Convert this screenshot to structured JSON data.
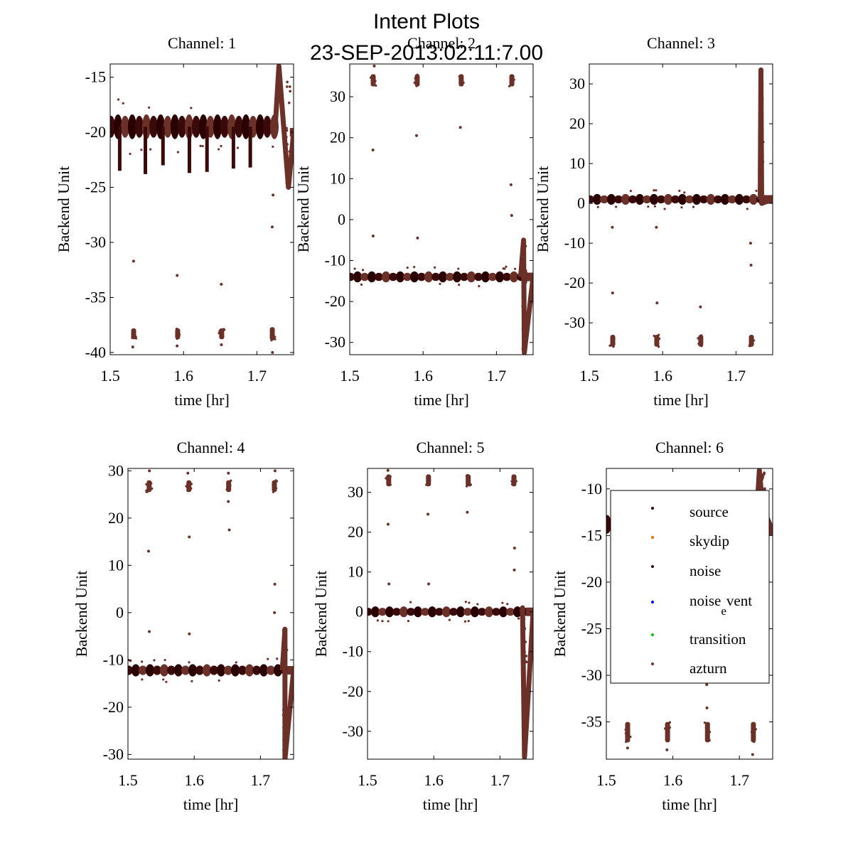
{
  "figure": {
    "title_line1": "Intent Plots",
    "title_line2": "23-SEP-2013:02:11:7.00"
  },
  "colors": {
    "source": "#2a0000",
    "skydip": "#e07000",
    "noise": "#3a0a0a",
    "noise_event": "#0000ff",
    "transition": "#00c000",
    "azturn": "#6b3028",
    "axis": "#000000"
  },
  "legend": {
    "entries": [
      {
        "label": "source",
        "color_key": "source"
      },
      {
        "label": "skydip",
        "color_key": "skydip"
      },
      {
        "label": "noise",
        "color_key": "noise"
      },
      {
        "label": "noise",
        "sub": "e",
        "rest": "vent",
        "color_key": "noise_event"
      },
      {
        "label": "transition",
        "color_key": "transition"
      },
      {
        "label": "azturn",
        "color_key": "azturn"
      }
    ]
  },
  "chart_data": [
    {
      "type": "scatter",
      "title": "Channel: 1",
      "xlabel": "time [hr]",
      "ylabel": "Backend Unit",
      "xlim": [
        1.5,
        1.75
      ],
      "ylim": [
        -40.2,
        -13.8
      ],
      "xticks": [
        1.5,
        1.6,
        1.7
      ],
      "yticks": [
        -15,
        -20,
        -25,
        -30,
        -35,
        -40
      ],
      "baseline": -19.5,
      "band_halfwidth": 1.0,
      "spikes": [
        {
          "x": 1.532,
          "low": -38.8,
          "high": -37.8,
          "outliers": [
            -31.7,
            -39.5
          ]
        },
        {
          "x": 1.592,
          "low": -38.8,
          "high": -37.8,
          "outliers": [
            -33.0,
            -39.4
          ]
        },
        {
          "x": 1.652,
          "low": -38.8,
          "high": -37.8,
          "outliers": [
            -33.8,
            -39.3
          ]
        },
        {
          "x": 1.721,
          "low": -38.9,
          "high": -37.7,
          "outliers": [
            -28.6,
            -25.7,
            -40.0
          ]
        }
      ],
      "dips": [
        {
          "x": 1.513,
          "to": -23.5
        },
        {
          "x": 1.548,
          "to": -23.8
        },
        {
          "x": 1.572,
          "to": -23.0
        },
        {
          "x": 1.608,
          "to": -23.7
        },
        {
          "x": 1.632,
          "to": -23.6
        },
        {
          "x": 1.668,
          "to": -23.3
        },
        {
          "x": 1.691,
          "to": -23.2
        }
      ],
      "event": {
        "x_start": 1.725,
        "x_peak": 1.73,
        "peak": -14.0,
        "x_trough": 1.743,
        "trough": -25.0,
        "x_end": 1.75,
        "end": -20.0
      }
    },
    {
      "type": "scatter",
      "title": "Channel: 2",
      "xlabel": "time [hr]",
      "ylabel": "Backend Unit",
      "xlim": [
        1.5,
        1.75
      ],
      "ylim": [
        -33,
        38
      ],
      "xticks": [
        1.5,
        1.6,
        1.7
      ],
      "yticks": [
        30,
        20,
        10,
        0,
        -10,
        -20,
        -30
      ],
      "baseline": -14.0,
      "band_halfwidth": 1.0,
      "spikes": [
        {
          "x": 1.532,
          "low": 32.5,
          "high": 35.5,
          "outliers": [
            17.0,
            -4.0,
            37.5
          ]
        },
        {
          "x": 1.592,
          "low": 32.5,
          "high": 35.5,
          "outliers": [
            20.5,
            -4.5
          ]
        },
        {
          "x": 1.652,
          "low": 32.5,
          "high": 35.5,
          "outliers": [
            22.5
          ]
        },
        {
          "x": 1.721,
          "low": 32.5,
          "high": 35.5,
          "outliers": [
            8.5,
            1.0
          ]
        }
      ],
      "dips": [],
      "event": {
        "x_start": 1.733,
        "x_peak": 1.737,
        "peak": -5.0,
        "x_trough": 1.738,
        "trough": -32.5,
        "x_end": 1.75,
        "end": -14.0
      }
    },
    {
      "type": "scatter",
      "title": "Channel: 3",
      "xlabel": "time [hr]",
      "ylabel": "Backend Unit",
      "xlim": [
        1.5,
        1.75
      ],
      "ylim": [
        -38,
        35
      ],
      "xticks": [
        1.5,
        1.6,
        1.7
      ],
      "yticks": [
        30,
        20,
        10,
        0,
        -10,
        -20,
        -30
      ],
      "baseline": 1.0,
      "band_halfwidth": 1.0,
      "spikes": [
        {
          "x": 1.532,
          "low": -36.0,
          "high": -33.0,
          "outliers": [
            -6.0,
            -22.5
          ]
        },
        {
          "x": 1.592,
          "low": -36.0,
          "high": -33.0,
          "outliers": [
            -6.0,
            -25.0
          ]
        },
        {
          "x": 1.652,
          "low": -36.0,
          "high": -33.0,
          "outliers": [
            -26.0
          ]
        },
        {
          "x": 1.721,
          "low": -36.0,
          "high": -33.0,
          "outliers": [
            -10.0,
            -15.5
          ]
        }
      ],
      "dips": [],
      "event": {
        "x_start": 1.733,
        "x_peak": 1.734,
        "peak": 33.5,
        "x_trough": 1.735,
        "trough": 0.0,
        "x_end": 1.75,
        "end": 1.0
      }
    },
    {
      "type": "scatter",
      "title": "Channel: 4",
      "xlabel": "time [hr]",
      "ylabel": "Backend Unit",
      "xlim": [
        1.5,
        1.75
      ],
      "ylim": [
        -31,
        30.5
      ],
      "xticks": [
        1.5,
        1.6,
        1.7
      ],
      "yticks": [
        30,
        20,
        10,
        0,
        -10,
        -20,
        -30
      ],
      "baseline": -12.2,
      "band_halfwidth": 1.0,
      "spikes": [
        {
          "x": 1.532,
          "low": 25.5,
          "high": 28.0,
          "outliers": [
            13.0,
            -4.0,
            30.0
          ]
        },
        {
          "x": 1.592,
          "low": 25.5,
          "high": 28.0,
          "outliers": [
            16.0,
            -4.5,
            29.5
          ]
        },
        {
          "x": 1.652,
          "low": 25.5,
          "high": 28.0,
          "outliers": [
            17.5,
            23.5,
            29.5
          ]
        },
        {
          "x": 1.721,
          "low": 25.5,
          "high": 28.0,
          "outliers": [
            6.0,
            0.0,
            30.0
          ]
        }
      ],
      "dips": [],
      "event": {
        "x_start": 1.733,
        "x_peak": 1.737,
        "peak": -3.5,
        "x_trough": 1.737,
        "trough": -31.0,
        "x_end": 1.75,
        "end": -12.2
      }
    },
    {
      "type": "scatter",
      "title": "Channel: 5",
      "xlabel": "time [hr]",
      "ylabel": "Backend Unit",
      "xlim": [
        1.5,
        1.75
      ],
      "ylim": [
        -37,
        36
      ],
      "xticks": [
        1.5,
        1.6,
        1.7
      ],
      "yticks": [
        30,
        20,
        10,
        0,
        -10,
        -20,
        -30
      ],
      "baseline": 0.0,
      "band_halfwidth": 1.0,
      "spikes": [
        {
          "x": 1.532,
          "low": 31.5,
          "high": 34.5,
          "outliers": [
            22.0,
            7.0,
            35.5
          ]
        },
        {
          "x": 1.592,
          "low": 31.5,
          "high": 34.5,
          "outliers": [
            24.5,
            7.0
          ]
        },
        {
          "x": 1.652,
          "low": 31.5,
          "high": 34.5,
          "outliers": [
            25.0
          ]
        },
        {
          "x": 1.721,
          "low": 31.5,
          "high": 34.5,
          "outliers": [
            16.0,
            10.5
          ]
        }
      ],
      "dips": [],
      "event": {
        "x_start": 1.733,
        "x_peak": 1.734,
        "peak": 1.0,
        "x_trough": 1.737,
        "trough": -36.5,
        "x_end": 1.75,
        "end": 0.0
      }
    },
    {
      "type": "scatter",
      "title": "Channel: 6",
      "xlabel": "time [hr]",
      "ylabel": "Backend Unit",
      "xlim": [
        1.5,
        1.75
      ],
      "ylim": [
        -39,
        -7.8
      ],
      "xticks": [
        1.5,
        1.6,
        1.7
      ],
      "yticks": [
        -10,
        -15,
        -20,
        -25,
        -30,
        -35
      ],
      "baseline": -13.8,
      "band_halfwidth": 1.0,
      "spikes": [
        {
          "x": 1.532,
          "low": -37.2,
          "high": -35.0,
          "outliers": [
            -37.8
          ]
        },
        {
          "x": 1.592,
          "low": -37.2,
          "high": -35.0,
          "outliers": [
            -38.0
          ]
        },
        {
          "x": 1.652,
          "low": -37.2,
          "high": -35.0,
          "outliers": [
            -33.5,
            -31.0
          ]
        },
        {
          "x": 1.721,
          "low": -37.2,
          "high": -35.0,
          "outliers": [
            -38.5
          ]
        }
      ],
      "dips": [],
      "event": {
        "x_start": 1.725,
        "x_peak": 1.73,
        "peak": -8.0,
        "x_trough": 1.735,
        "trough": -12.0,
        "x_end": 1.75,
        "end": -14.5
      }
    }
  ]
}
